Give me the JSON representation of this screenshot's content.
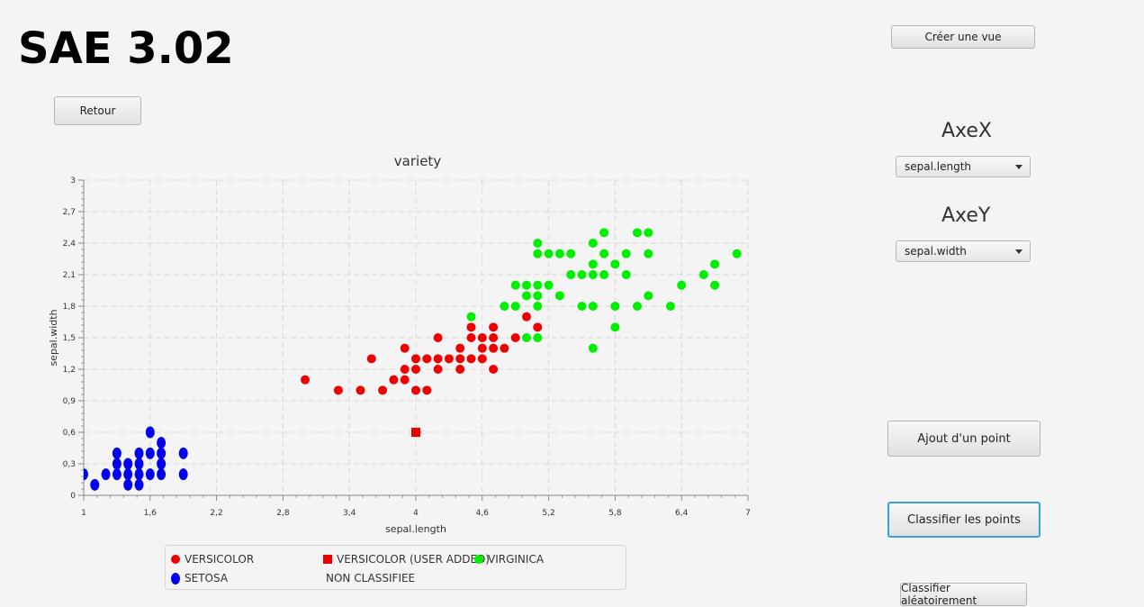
{
  "app": {
    "title": "SAE 3.02"
  },
  "buttons": {
    "create_view": "Créer une vue",
    "back": "Retour",
    "add_point": "Ajout d'un point",
    "classify": "Classifier les points",
    "classify_random": "Classifier aléatoirement"
  },
  "axes_controls": {
    "x_title": "AxeX",
    "x_selected": "sepal.length",
    "y_title": "AxeY",
    "y_selected": "sepal.width"
  },
  "colors": {
    "versicolor": "#ee0000",
    "setosa": "#0000ee",
    "virginica": "#00ee00"
  },
  "legend": [
    {
      "label": "VERSICOLOR",
      "symbol": "circle",
      "color": "#ee0000"
    },
    {
      "label": "VERSICOLOR (USER ADDED)",
      "symbol": "square",
      "color": "#ee0000"
    },
    {
      "label": "VIRGINICA",
      "symbol": "circle",
      "color": "#00ee00"
    },
    {
      "label": "SETOSA",
      "symbol": "ellipse",
      "color": "#0000ee"
    },
    {
      "label": "NON CLASSIFIEE",
      "symbol": "none",
      "color": ""
    }
  ],
  "chart_data": {
    "type": "scatter",
    "title": "variety",
    "xlabel": "sepal.length",
    "ylabel": "sepal.width",
    "xlim": [
      1,
      7
    ],
    "ylim": [
      0,
      3
    ],
    "xticks": [
      "1",
      "1,6",
      "2,2",
      "2,8",
      "3,4",
      "4",
      "4,6",
      "5,2",
      "5,8",
      "6,4",
      "7"
    ],
    "yticks": [
      "0",
      "0,3",
      "0,6",
      "0,9",
      "1,2",
      "1,5",
      "1,8",
      "2,1",
      "2,4",
      "2,7",
      "3"
    ],
    "grid": true,
    "series": [
      {
        "name": "VERSICOLOR",
        "marker": "circle",
        "color": "#ee0000",
        "points": [
          [
            3.0,
            1.1
          ],
          [
            3.3,
            1.0
          ],
          [
            3.5,
            1.0
          ],
          [
            3.6,
            1.3
          ],
          [
            3.7,
            1.0
          ],
          [
            3.8,
            1.1
          ],
          [
            3.9,
            1.1
          ],
          [
            3.9,
            1.2
          ],
          [
            3.9,
            1.4
          ],
          [
            4.0,
            1.0
          ],
          [
            4.0,
            1.2
          ],
          [
            4.0,
            1.3
          ],
          [
            4.1,
            1.0
          ],
          [
            4.1,
            1.3
          ],
          [
            4.2,
            1.2
          ],
          [
            4.2,
            1.3
          ],
          [
            4.2,
            1.5
          ],
          [
            4.3,
            1.3
          ],
          [
            4.4,
            1.2
          ],
          [
            4.4,
            1.3
          ],
          [
            4.4,
            1.4
          ],
          [
            4.5,
            1.3
          ],
          [
            4.5,
            1.5
          ],
          [
            4.5,
            1.6
          ],
          [
            4.6,
            1.3
          ],
          [
            4.6,
            1.4
          ],
          [
            4.6,
            1.5
          ],
          [
            4.7,
            1.2
          ],
          [
            4.7,
            1.4
          ],
          [
            4.7,
            1.5
          ],
          [
            4.7,
            1.6
          ],
          [
            4.8,
            1.4
          ],
          [
            4.9,
            1.5
          ],
          [
            5.0,
            1.7
          ],
          [
            5.1,
            1.6
          ]
        ]
      },
      {
        "name": "VERSICOLOR (USER ADDED)",
        "marker": "square",
        "color": "#ee0000",
        "points": [
          [
            4.0,
            0.6
          ]
        ]
      },
      {
        "name": "VIRGINICA",
        "marker": "circle",
        "color": "#00ee00",
        "points": [
          [
            4.5,
            1.7
          ],
          [
            4.8,
            1.8
          ],
          [
            4.9,
            1.8
          ],
          [
            4.9,
            2.0
          ],
          [
            5.0,
            1.5
          ],
          [
            5.0,
            1.9
          ],
          [
            5.0,
            2.0
          ],
          [
            5.1,
            1.5
          ],
          [
            5.1,
            1.8
          ],
          [
            5.1,
            1.9
          ],
          [
            5.1,
            2.0
          ],
          [
            5.1,
            2.3
          ],
          [
            5.1,
            2.4
          ],
          [
            5.2,
            2.0
          ],
          [
            5.2,
            2.3
          ],
          [
            5.3,
            1.9
          ],
          [
            5.3,
            2.3
          ],
          [
            5.4,
            2.1
          ],
          [
            5.4,
            2.3
          ],
          [
            5.5,
            1.8
          ],
          [
            5.5,
            2.1
          ],
          [
            5.6,
            1.4
          ],
          [
            5.6,
            1.8
          ],
          [
            5.6,
            2.1
          ],
          [
            5.6,
            2.2
          ],
          [
            5.6,
            2.4
          ],
          [
            5.7,
            2.1
          ],
          [
            5.7,
            2.3
          ],
          [
            5.7,
            2.5
          ],
          [
            5.8,
            1.6
          ],
          [
            5.8,
            1.8
          ],
          [
            5.8,
            2.2
          ],
          [
            5.9,
            2.1
          ],
          [
            5.9,
            2.3
          ],
          [
            6.0,
            1.8
          ],
          [
            6.0,
            2.5
          ],
          [
            6.1,
            1.9
          ],
          [
            6.1,
            2.3
          ],
          [
            6.1,
            2.5
          ],
          [
            6.3,
            1.8
          ],
          [
            6.4,
            2.0
          ],
          [
            6.6,
            2.1
          ],
          [
            6.7,
            2.0
          ],
          [
            6.7,
            2.2
          ],
          [
            6.9,
            2.3
          ]
        ]
      },
      {
        "name": "SETOSA",
        "marker": "ellipse",
        "color": "#0000ee",
        "points": [
          [
            1.0,
            0.2
          ],
          [
            1.1,
            0.1
          ],
          [
            1.2,
            0.2
          ],
          [
            1.3,
            0.2
          ],
          [
            1.3,
            0.3
          ],
          [
            1.3,
            0.4
          ],
          [
            1.4,
            0.1
          ],
          [
            1.4,
            0.2
          ],
          [
            1.4,
            0.3
          ],
          [
            1.5,
            0.1
          ],
          [
            1.5,
            0.2
          ],
          [
            1.5,
            0.3
          ],
          [
            1.5,
            0.4
          ],
          [
            1.6,
            0.2
          ],
          [
            1.6,
            0.4
          ],
          [
            1.6,
            0.6
          ],
          [
            1.7,
            0.2
          ],
          [
            1.7,
            0.3
          ],
          [
            1.7,
            0.4
          ],
          [
            1.7,
            0.5
          ],
          [
            1.9,
            0.2
          ],
          [
            1.9,
            0.4
          ]
        ]
      }
    ]
  }
}
